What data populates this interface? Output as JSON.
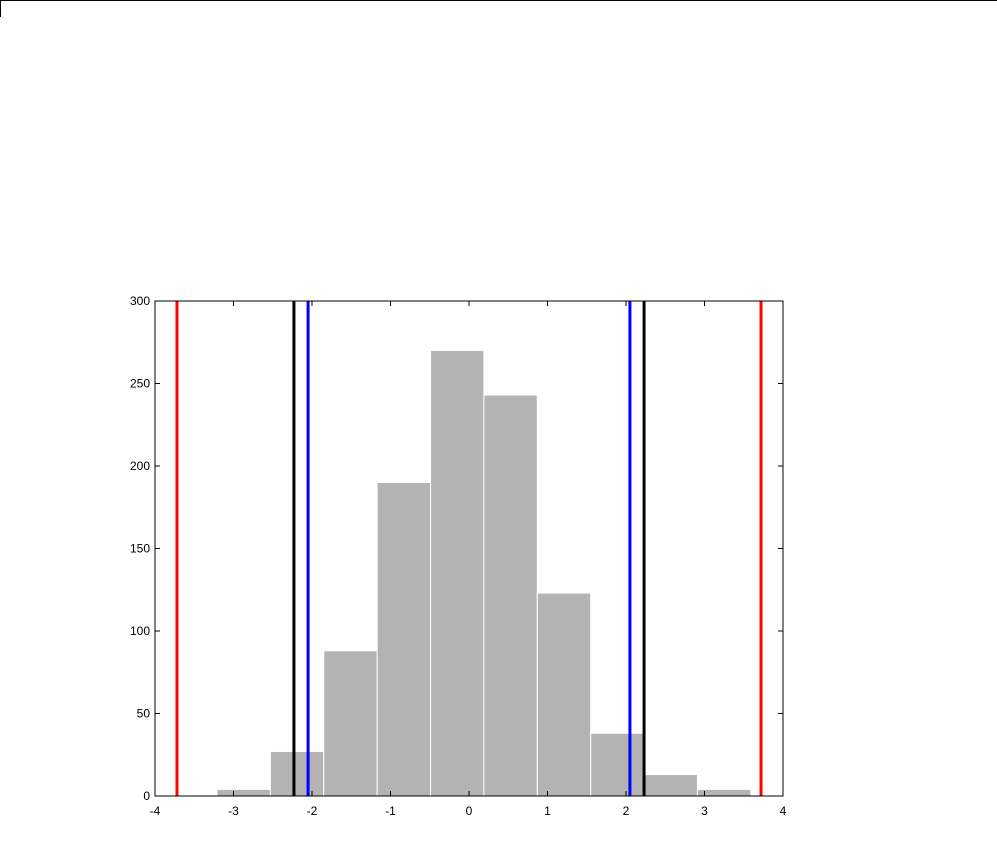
{
  "chart_data": {
    "type": "bar",
    "title": "",
    "xlabel": "",
    "ylabel": "",
    "xlim": [
      -4,
      4
    ],
    "ylim": [
      0,
      300
    ],
    "xticks": [
      -4,
      -3,
      -2,
      -1,
      0,
      1,
      2,
      3,
      4
    ],
    "yticks": [
      0,
      50,
      100,
      150,
      200,
      250,
      300
    ],
    "bins": [
      {
        "x0": -3.21,
        "x1": -2.53,
        "value": 4
      },
      {
        "x0": -2.53,
        "x1": -1.85,
        "value": 27
      },
      {
        "x0": -1.85,
        "x1": -1.17,
        "value": 88
      },
      {
        "x0": -1.17,
        "x1": -0.49,
        "value": 190
      },
      {
        "x0": -0.49,
        "x1": 0.19,
        "value": 270
      },
      {
        "x0": 0.19,
        "x1": 0.87,
        "value": 243
      },
      {
        "x0": 0.87,
        "x1": 1.55,
        "value": 123
      },
      {
        "x0": 1.55,
        "x1": 2.23,
        "value": 38
      },
      {
        "x0": 2.23,
        "x1": 2.91,
        "value": 13
      },
      {
        "x0": 2.91,
        "x1": 3.59,
        "value": 4
      }
    ],
    "vlines": [
      {
        "x": -3.72,
        "color": "#ff0000"
      },
      {
        "x": 3.72,
        "color": "#ff0000"
      },
      {
        "x": -2.23,
        "color": "#000000"
      },
      {
        "x": 2.23,
        "color": "#000000"
      },
      {
        "x": -2.05,
        "color": "#0000ff"
      },
      {
        "x": 2.05,
        "color": "#0000ff"
      }
    ],
    "bar_color": "#b3b3b3",
    "bar_edge_color": "#ffffff",
    "grid": false
  }
}
